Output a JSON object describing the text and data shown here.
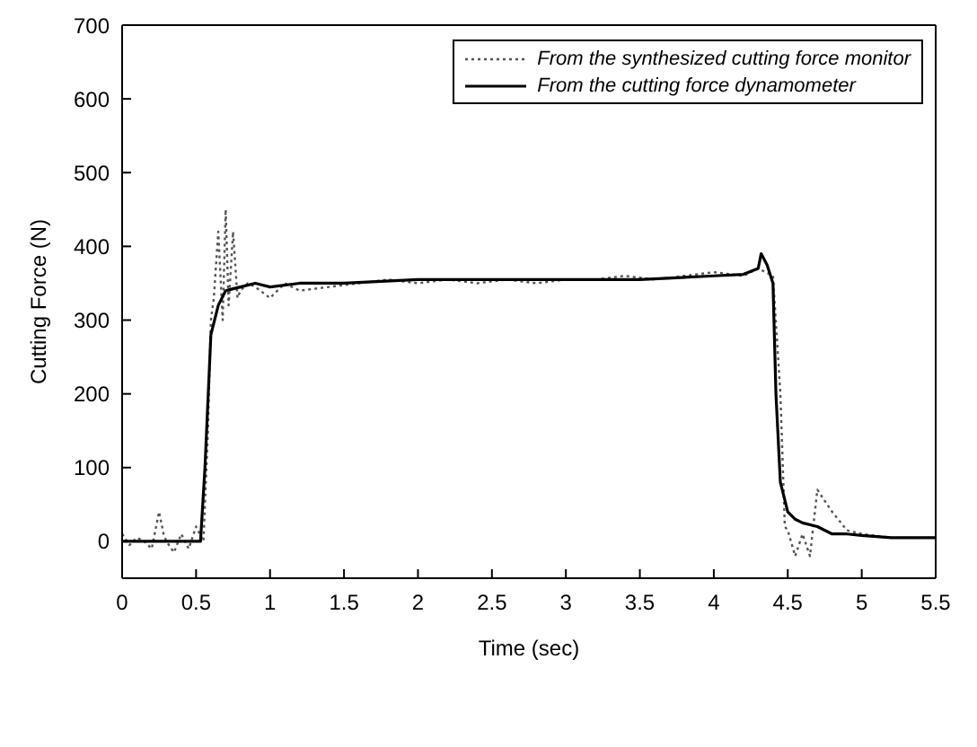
{
  "chart_data": {
    "type": "line",
    "xlabel": "Time (sec)",
    "ylabel": "Cutting Force  (N)",
    "xlim": [
      0,
      5.5
    ],
    "xticks": [
      0,
      0.5,
      1,
      1.5,
      2,
      2.5,
      3,
      3.5,
      4,
      4.5,
      5,
      5.5
    ],
    "ylim": [
      -50,
      700
    ],
    "yticks": [
      0,
      100,
      200,
      300,
      400,
      500,
      600,
      700
    ],
    "grid": false,
    "legend": "top right",
    "marker": "none",
    "series": [
      {
        "name": "From the synthesized cutting force monitor",
        "color": "#555555",
        "line_style": "dotted",
        "x": [
          0,
          0.05,
          0.1,
          0.15,
          0.2,
          0.25,
          0.28,
          0.3,
          0.35,
          0.4,
          0.45,
          0.5,
          0.55,
          0.58,
          0.6,
          0.62,
          0.65,
          0.68,
          0.7,
          0.72,
          0.75,
          0.78,
          0.8,
          0.85,
          0.9,
          1.0,
          1.1,
          1.2,
          1.4,
          1.6,
          1.8,
          2.0,
          2.2,
          2.4,
          2.6,
          2.8,
          3.0,
          3.2,
          3.4,
          3.6,
          3.8,
          4.0,
          4.2,
          4.3,
          4.4,
          4.45,
          4.48,
          4.5,
          4.55,
          4.6,
          4.65,
          4.7,
          4.8,
          4.9,
          5.0,
          5.2,
          5.5
        ],
        "values": [
          10,
          -5,
          5,
          0,
          -10,
          40,
          10,
          0,
          -15,
          10,
          -10,
          20,
          0,
          150,
          300,
          330,
          420,
          300,
          450,
          320,
          420,
          330,
          340,
          350,
          345,
          330,
          350,
          340,
          345,
          350,
          355,
          350,
          355,
          350,
          355,
          350,
          355,
          355,
          360,
          355,
          360,
          365,
          360,
          370,
          360,
          200,
          20,
          15,
          -20,
          10,
          -20,
          70,
          40,
          15,
          10,
          5,
          5
        ]
      },
      {
        "name": "From the cutting force dynamometer",
        "color": "#000000",
        "line_style": "solid",
        "x": [
          0,
          0.1,
          0.2,
          0.3,
          0.4,
          0.5,
          0.53,
          0.56,
          0.6,
          0.65,
          0.7,
          0.8,
          0.9,
          1.0,
          1.2,
          1.5,
          2.0,
          2.5,
          3.0,
          3.5,
          4.0,
          4.2,
          4.3,
          4.32,
          4.36,
          4.4,
          4.42,
          4.45,
          4.5,
          4.55,
          4.6,
          4.7,
          4.8,
          4.9,
          5.0,
          5.2,
          5.5
        ],
        "values": [
          0,
          0,
          0,
          0,
          0,
          0,
          0,
          100,
          280,
          320,
          340,
          345,
          350,
          345,
          350,
          350,
          355,
          355,
          355,
          355,
          360,
          362,
          370,
          390,
          375,
          350,
          200,
          80,
          40,
          30,
          25,
          20,
          10,
          10,
          8,
          5,
          5
        ]
      }
    ]
  }
}
